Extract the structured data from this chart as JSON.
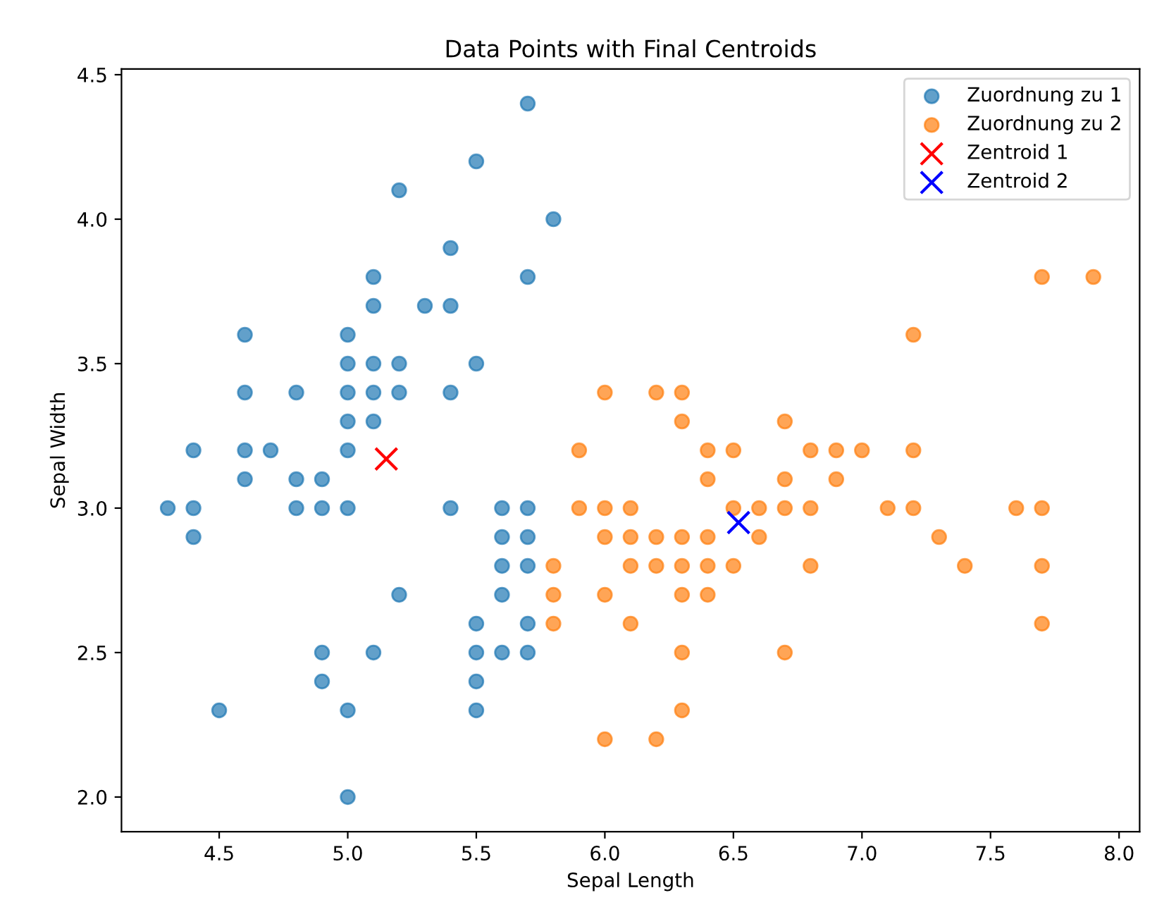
{
  "chart_data": {
    "type": "scatter",
    "title": "Data Points with Final Centroids",
    "xlabel": "Sepal Length",
    "ylabel": "Sepal Width",
    "xlim": [
      4.12,
      8.08
    ],
    "ylim": [
      1.88,
      4.52
    ],
    "xticks": [
      4.5,
      {
        "value": 5,
        "label": "5.0"
      },
      5.5,
      {
        "value": 6,
        "label": "6.0"
      },
      6.5,
      {
        "value": 7,
        "label": "7.0"
      },
      7.5,
      {
        "value": 8,
        "label": "8.0"
      }
    ],
    "yticks": [
      {
        "value": 2,
        "label": "2.0"
      },
      2.5,
      {
        "value": 3,
        "label": "3.0"
      },
      3.5,
      {
        "value": 4,
        "label": "4.0"
      },
      4.5
    ],
    "grid": false,
    "legend": "top right",
    "series": [
      {
        "name": "Zuordnung zu 1",
        "color": "#1f77b4",
        "marker": "circle",
        "x": [
          4.3,
          4.4,
          4.4,
          4.4,
          4.5,
          4.6,
          4.6,
          4.6,
          4.6,
          4.7,
          4.8,
          4.8,
          4.8,
          4.9,
          4.9,
          4.9,
          4.9,
          5.0,
          5.0,
          5.0,
          5.0,
          5.0,
          5.0,
          5.0,
          5.0,
          5.1,
          5.1,
          5.1,
          5.1,
          5.1,
          5.1,
          5.2,
          5.2,
          5.2,
          5.2,
          5.3,
          5.4,
          5.4,
          5.4,
          5.4,
          5.5,
          5.5,
          5.5,
          5.5,
          5.5,
          5.5,
          5.6,
          5.6,
          5.6,
          5.6,
          5.6,
          5.7,
          5.7,
          5.7,
          5.7,
          5.7,
          5.7,
          5.7,
          5.8
        ],
        "values": [
          3.0,
          3.2,
          3.0,
          2.9,
          2.3,
          3.6,
          3.4,
          3.2,
          3.1,
          3.2,
          3.4,
          3.1,
          3.0,
          3.1,
          3.0,
          2.5,
          2.4,
          3.6,
          3.5,
          3.4,
          3.3,
          3.2,
          3.0,
          2.3,
          2.0,
          3.8,
          3.7,
          3.5,
          3.4,
          3.3,
          2.5,
          4.1,
          3.5,
          3.4,
          2.7,
          3.7,
          3.9,
          3.7,
          3.4,
          3.0,
          4.2,
          3.5,
          2.6,
          2.5,
          2.4,
          2.3,
          3.0,
          2.9,
          2.8,
          2.7,
          2.5,
          4.4,
          3.8,
          3.0,
          2.9,
          2.8,
          2.6,
          2.5,
          4.0
        ]
      },
      {
        "name": "Zuordnung zu 2",
        "color": "#ff7f0e",
        "marker": "circle",
        "x": [
          5.8,
          5.8,
          5.8,
          5.9,
          5.9,
          6.0,
          6.0,
          6.0,
          6.0,
          6.0,
          6.1,
          6.1,
          6.1,
          6.1,
          6.2,
          6.2,
          6.2,
          6.2,
          6.3,
          6.3,
          6.3,
          6.3,
          6.3,
          6.3,
          6.3,
          6.4,
          6.4,
          6.4,
          6.4,
          6.4,
          6.5,
          6.5,
          6.5,
          6.6,
          6.6,
          6.7,
          6.7,
          6.7,
          6.7,
          6.8,
          6.8,
          6.8,
          6.9,
          6.9,
          7.0,
          7.1,
          7.2,
          7.2,
          7.2,
          7.3,
          7.4,
          7.6,
          7.7,
          7.7,
          7.7,
          7.7,
          7.9
        ],
        "values": [
          2.8,
          2.7,
          2.6,
          3.2,
          3.0,
          3.4,
          3.0,
          2.9,
          2.7,
          2.2,
          3.0,
          2.9,
          2.8,
          2.6,
          3.4,
          2.9,
          2.8,
          2.2,
          3.4,
          3.3,
          2.9,
          2.8,
          2.7,
          2.5,
          2.3,
          3.2,
          3.1,
          2.9,
          2.8,
          2.7,
          3.2,
          3.0,
          2.8,
          3.0,
          2.9,
          3.3,
          3.1,
          3.0,
          2.5,
          3.2,
          3.0,
          2.8,
          3.2,
          3.1,
          3.2,
          3.0,
          3.6,
          3.2,
          3.0,
          2.9,
          2.8,
          3.0,
          3.8,
          3.0,
          2.8,
          2.6,
          3.8
        ]
      },
      {
        "name": "Zentroid 1",
        "color": "#ff0000",
        "marker": "cross",
        "x": [
          5.15
        ],
        "values": [
          3.17
        ]
      },
      {
        "name": "Zentroid 2",
        "color": "#0000ff",
        "marker": "cross",
        "x": [
          6.52
        ],
        "values": [
          2.95
        ]
      }
    ]
  }
}
